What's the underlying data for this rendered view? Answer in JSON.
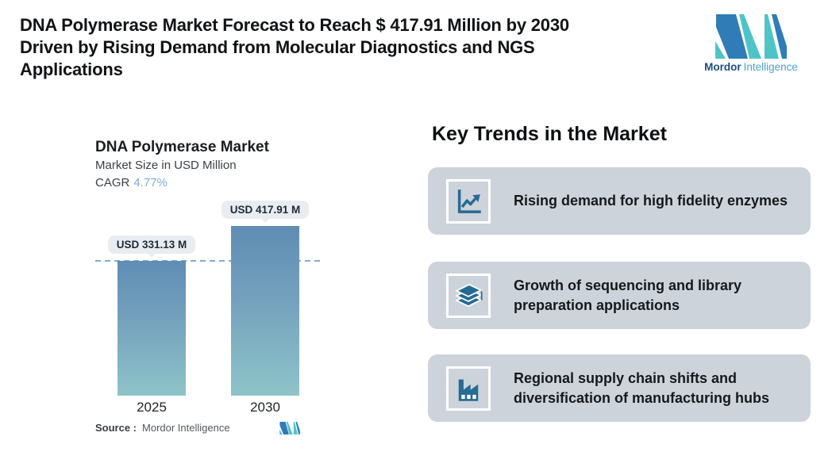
{
  "header": {
    "title_lines": [
      "DNA Polymerase Market Forecast to Reach $ 417.91 Million by 2030",
      "Driven by Rising Demand from Molecular Diagnostics and NGS",
      "Applications"
    ],
    "brand": {
      "name_bold": "Mordor",
      "name_light": "Intelligence"
    }
  },
  "chart_data": {
    "type": "bar",
    "title": "DNA Polymerase Market",
    "subtitle": "Market Size in USD Million",
    "cagr_label": "CAGR",
    "cagr_value": "4.77%",
    "categories": [
      "2025",
      "2030"
    ],
    "values": [
      331.13,
      417.91
    ],
    "value_labels": [
      "USD 331.13 M",
      "USD 417.91 M"
    ],
    "unit": "USD Million",
    "ylim": [
      0,
      417.91
    ],
    "reference_line_value": 331.13,
    "grid": false,
    "legend": false,
    "source_label": "Source :",
    "source_value": "Mordor Intelligence",
    "colors": {
      "bar_gradient_top": "#5f8db4",
      "bar_gradient_bottom": "#8ec4c9",
      "reference_line": "#84abce",
      "cagr_value": "#7dabdc",
      "value_pill_bg": "#e9edf1"
    }
  },
  "trends": {
    "heading": "Key Trends in the Market",
    "card_bg": "#cdd3da",
    "icon_color": "#256b93",
    "items": [
      {
        "icon": "line-chart-icon",
        "text": "Rising demand for high fidelity enzymes"
      },
      {
        "icon": "books-icon",
        "text": "Growth of sequencing and library preparation applications"
      },
      {
        "icon": "factory-icon",
        "text": "Regional supply chain shifts and diversification of manufacturing hubs"
      }
    ]
  }
}
